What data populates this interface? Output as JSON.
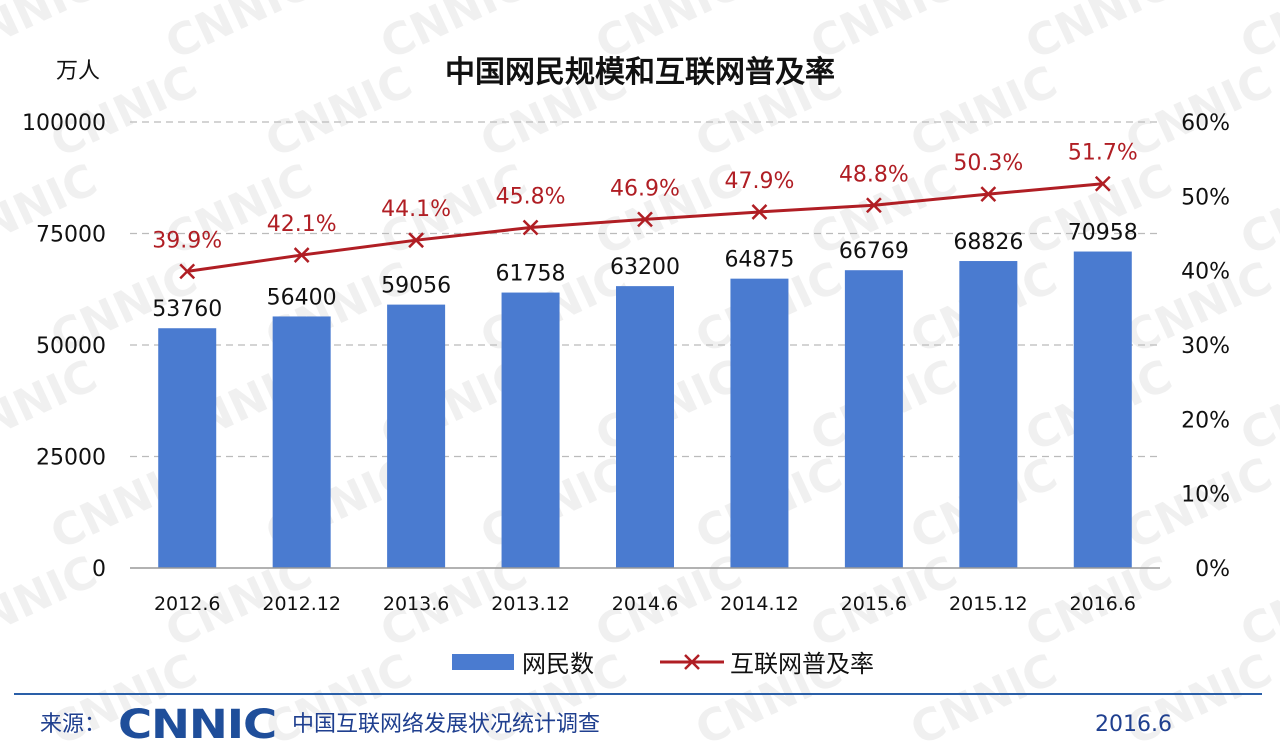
{
  "chart_data": {
    "type": "bar",
    "title": "中国网民规模和互联网普及率",
    "y_unit_label": "万人",
    "categories": [
      "2012.6",
      "2012.12",
      "2013.6",
      "2013.12",
      "2014.6",
      "2014.12",
      "2015.6",
      "2015.12",
      "2016.6"
    ],
    "series": [
      {
        "name": "网民数",
        "type": "bar",
        "axis": "left",
        "color": "#4a7bd0",
        "values": [
          53760,
          56400,
          59056,
          61758,
          63200,
          64875,
          66769,
          68826,
          70958
        ]
      },
      {
        "name": "互联网普及率",
        "type": "line",
        "axis": "right",
        "color": "#b01e24",
        "values": [
          39.9,
          42.1,
          44.1,
          45.8,
          46.9,
          47.9,
          48.8,
          50.3,
          51.7
        ],
        "labels": [
          "39.9%",
          "42.1%",
          "44.1%",
          "45.8%",
          "46.9%",
          "47.9%",
          "48.8%",
          "50.3%",
          "51.7%"
        ]
      }
    ],
    "ylim_left": [
      0,
      100000
    ],
    "yticks_left": [
      "0",
      "25000",
      "50000",
      "75000",
      "100000"
    ],
    "ylim_right": [
      0,
      60
    ],
    "yticks_right": [
      "0%",
      "10%",
      "20%",
      "30%",
      "40%",
      "50%",
      "60%"
    ],
    "grid": true,
    "legend_position": "bottom"
  },
  "footer": {
    "source_label": "来源：",
    "logo_text": "CNNIC",
    "source_name": "中国互联网络发展状况统计调查",
    "date": "2016.6"
  },
  "watermark_text": "CNNIC",
  "colors": {
    "bar": "#4a7bd0",
    "line": "#b01e24",
    "footer_rule": "#2a5fa8",
    "footer_text": "#1f3f8f"
  }
}
